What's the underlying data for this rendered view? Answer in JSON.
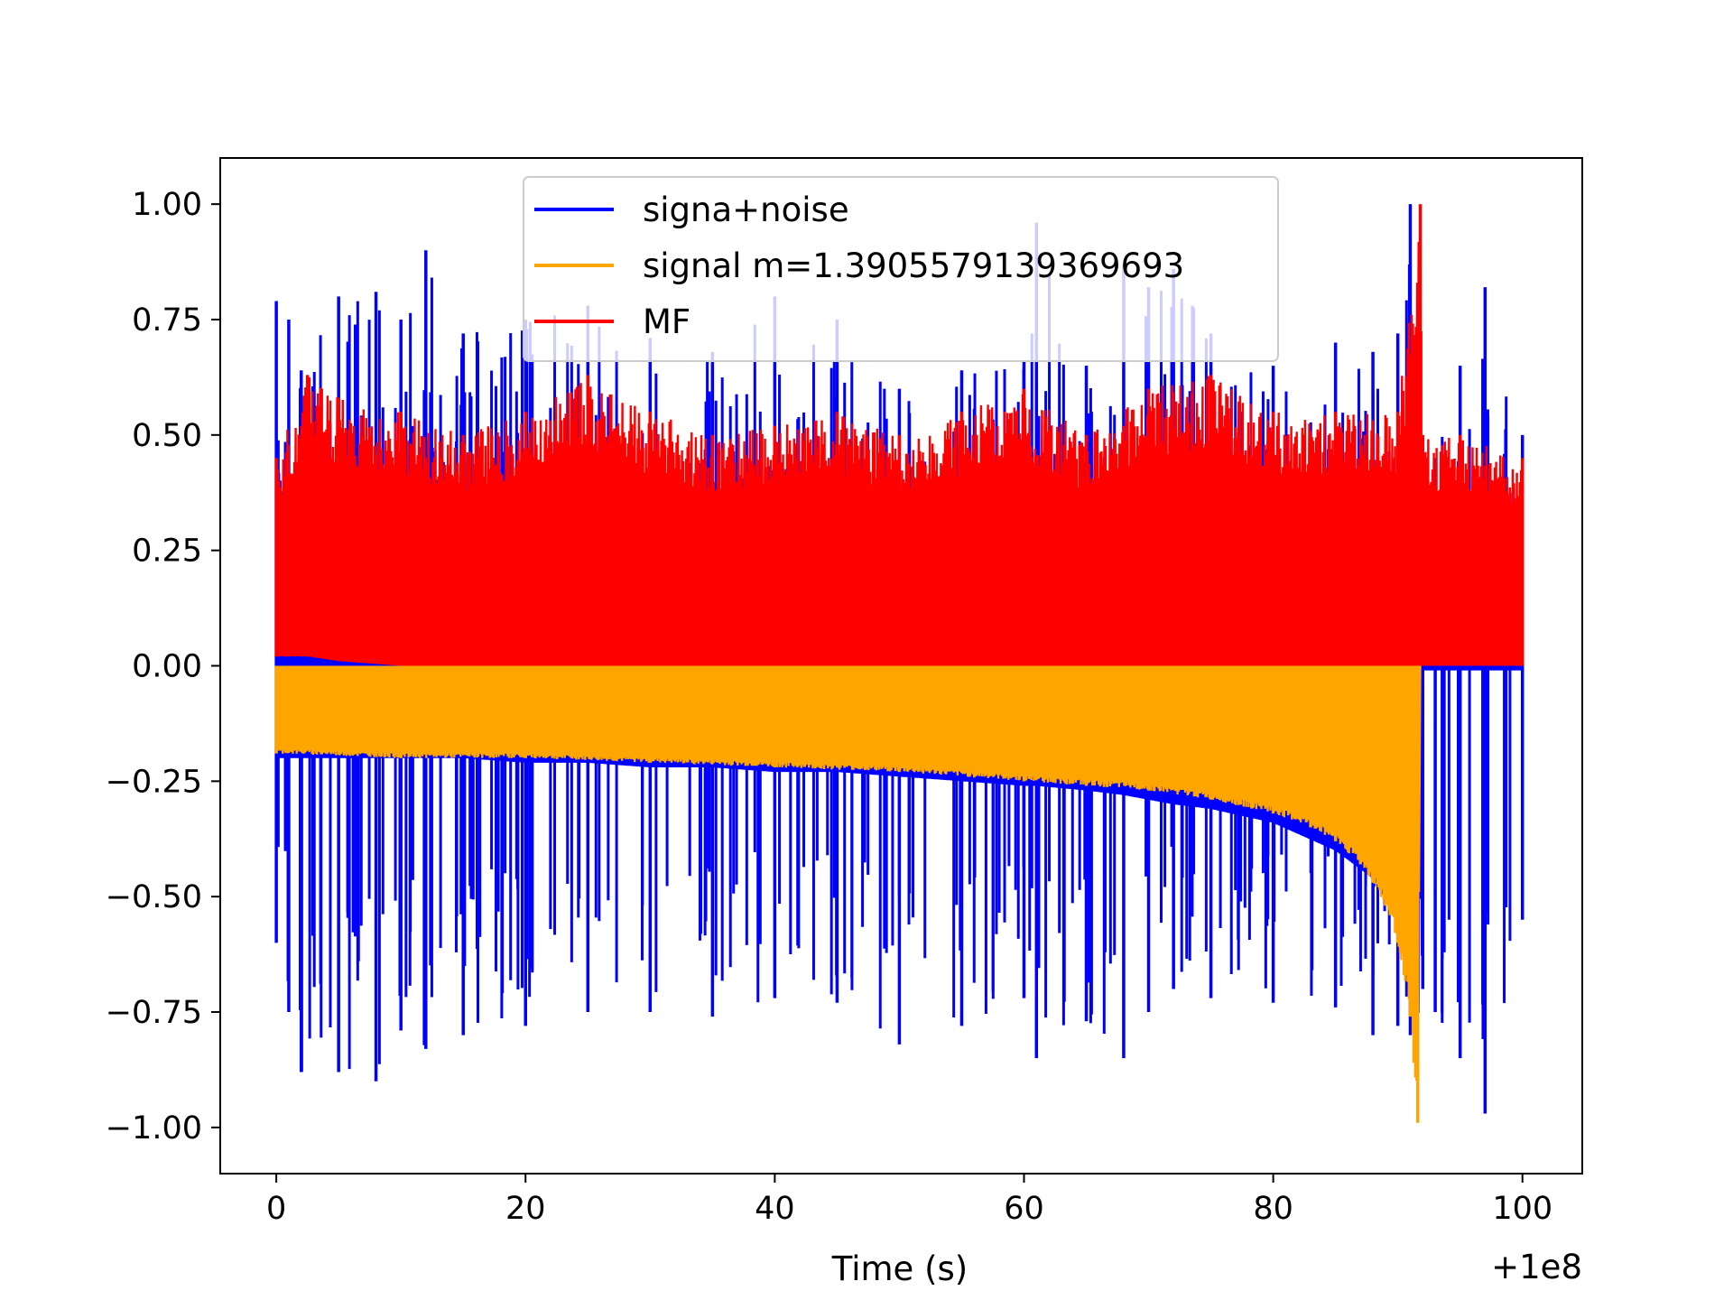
{
  "chart_data": {
    "type": "line",
    "title": "",
    "xlabel": "Time (s)",
    "ylabel": "",
    "x_offset_label": "+1e8",
    "xlim": [
      -4.5,
      104.8
    ],
    "ylim": [
      -1.1,
      1.1
    ],
    "x_ticks": [
      0,
      20,
      40,
      60,
      80,
      100
    ],
    "x_tick_labels": [
      "0",
      "20",
      "40",
      "60",
      "80",
      "100"
    ],
    "y_ticks": [
      1.0,
      0.75,
      0.5,
      0.25,
      0.0,
      -0.25,
      -0.5,
      -0.75,
      -1.0
    ],
    "y_tick_labels": [
      "1.00",
      "0.75",
      "0.50",
      "0.25",
      "0.00",
      "−0.25",
      "−0.50",
      "−0.75",
      "−1.00"
    ],
    "grid": false,
    "legend_position": "top-center",
    "legend": [
      "signa+noise",
      "signal m=1.3905579139369693",
      "MF"
    ],
    "series": [
      {
        "name": "signa+noise",
        "color": "#0000ff",
        "x": [
          0,
          1,
          2,
          5,
          8,
          10,
          12,
          15,
          20,
          25,
          30,
          35,
          40,
          45,
          50,
          55,
          60,
          61,
          65,
          68,
          70,
          72,
          75,
          80,
          85,
          88,
          90,
          91,
          91.6,
          92,
          93,
          95,
          97,
          100
        ],
        "upper": [
          0.79,
          0.75,
          0.64,
          0.8,
          0.81,
          0.75,
          0.9,
          0.72,
          0.75,
          0.78,
          0.71,
          0.68,
          0.8,
          0.75,
          0.6,
          0.64,
          0.66,
          0.96,
          0.65,
          0.87,
          0.82,
          0.86,
          0.72,
          0.65,
          0.7,
          0.68,
          0.72,
          1.0,
          0.55,
          0.45,
          0.45,
          0.65,
          0.82,
          0.5
        ],
        "lower": [
          -0.6,
          -0.75,
          -0.88,
          -0.88,
          -0.9,
          -0.79,
          -0.83,
          -0.8,
          -0.78,
          -0.75,
          -0.75,
          -0.76,
          -0.72,
          -0.73,
          -0.82,
          -0.78,
          -0.72,
          -0.85,
          -0.77,
          -0.85,
          -0.75,
          -0.7,
          -0.72,
          -0.73,
          -0.74,
          -0.8,
          -0.78,
          -0.8,
          -0.62,
          -0.7,
          -0.75,
          -0.85,
          -0.97,
          -0.55
        ],
        "envelope_floor": [
          -0.2,
          -0.2,
          -0.2,
          -0.2,
          -0.2,
          -0.2,
          -0.2,
          -0.2,
          -0.21,
          -0.21,
          -0.22,
          -0.22,
          -0.23,
          -0.23,
          -0.24,
          -0.25,
          -0.26,
          -0.26,
          -0.27,
          -0.28,
          -0.29,
          -0.3,
          -0.31,
          -0.34,
          -0.4,
          -0.46,
          -0.55,
          -0.7,
          -0.9,
          -0.01,
          -0.01,
          -0.01,
          -0.01,
          -0.01
        ]
      },
      {
        "name": "signal m=1.3905579139369693",
        "color": "#ffa500",
        "x": [
          0,
          10,
          20,
          30,
          40,
          50,
          60,
          65,
          70,
          75,
          80,
          83,
          85,
          87,
          88,
          89,
          90,
          90.5,
          91,
          91.3,
          91.6,
          91.8
        ],
        "upper": [
          0.0,
          0.0,
          0.0,
          0.0,
          0.01,
          0.01,
          0.01,
          0.01,
          0.02,
          0.03,
          0.04,
          0.06,
          0.08,
          0.12,
          0.15,
          0.2,
          0.28,
          0.35,
          0.45,
          0.55,
          0.68,
          0.0
        ],
        "lower": [
          -0.19,
          -0.2,
          -0.2,
          -0.21,
          -0.22,
          -0.23,
          -0.25,
          -0.26,
          -0.27,
          -0.29,
          -0.32,
          -0.35,
          -0.38,
          -0.43,
          -0.47,
          -0.52,
          -0.6,
          -0.67,
          -0.76,
          -0.86,
          -0.99,
          0.0
        ]
      },
      {
        "name": "MF",
        "color": "#ff0000",
        "x": [
          0,
          2.5,
          5,
          10,
          15,
          20,
          25,
          30,
          35,
          40,
          45,
          50,
          55,
          60,
          65,
          70,
          75,
          80,
          85,
          90,
          91.8,
          92,
          95,
          100
        ],
        "upper": [
          0.45,
          0.63,
          0.58,
          0.55,
          0.5,
          0.55,
          0.63,
          0.55,
          0.5,
          0.52,
          0.55,
          0.5,
          0.55,
          0.6,
          0.5,
          0.6,
          0.63,
          0.55,
          0.55,
          0.55,
          1.0,
          0.5,
          0.5,
          0.45
        ],
        "lower": [
          0.02,
          0.02,
          0.01,
          0.0,
          0.0,
          0.0,
          0.0,
          0.0,
          0.0,
          0.0,
          0.0,
          0.0,
          0.0,
          0.0,
          0.0,
          0.0,
          0.0,
          0.0,
          0.0,
          0.0,
          0.0,
          0.0,
          0.0,
          0.0
        ]
      }
    ]
  }
}
